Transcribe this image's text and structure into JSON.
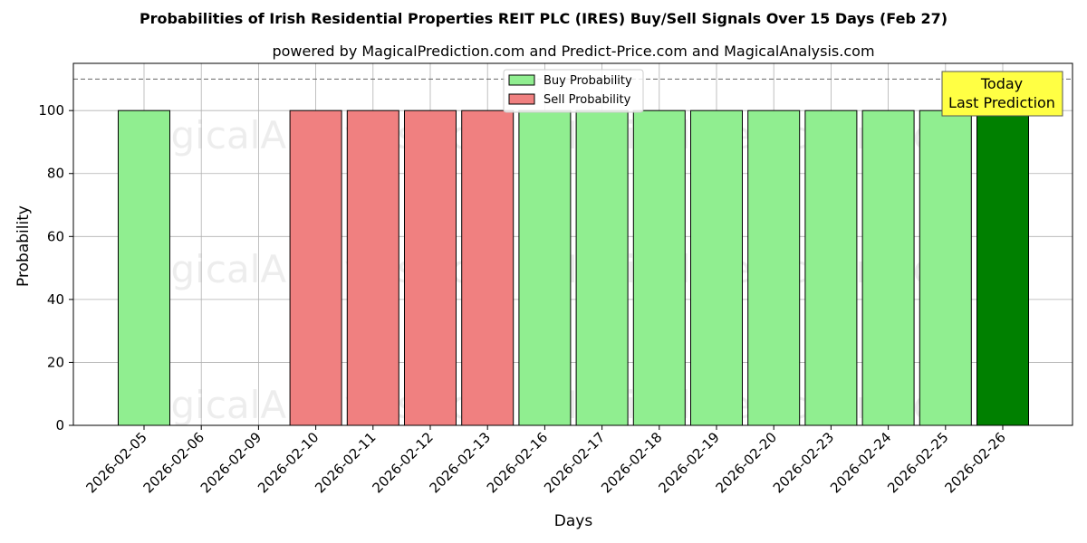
{
  "chart_data": {
    "type": "bar",
    "title": "Probabilities of Irish Residential Properties REIT PLC (IRES) Buy/Sell Signals Over 15 Days (Feb 27)",
    "subtitle": "powered by MagicalPrediction.com and Predict-Price.com and MagicalAnalysis.com",
    "xlabel": "Days",
    "ylabel": "Probability",
    "ylim": [
      0,
      115
    ],
    "yticks": [
      0,
      20,
      40,
      60,
      80,
      100
    ],
    "reference_line": 110,
    "grid": true,
    "legend_position": "top-center",
    "categories": [
      "2026-02-05",
      "2026-02-06",
      "2026-02-09",
      "2026-02-10",
      "2026-02-11",
      "2026-02-12",
      "2026-02-13",
      "2026-02-16",
      "2026-02-17",
      "2026-02-18",
      "2026-02-19",
      "2026-02-20",
      "2026-02-23",
      "2026-02-24",
      "2026-02-25",
      "2026-02-26"
    ],
    "series": [
      {
        "name": "Buy Probability",
        "color": "#90ee90",
        "values": [
          100,
          0,
          0,
          0,
          0,
          0,
          0,
          100,
          100,
          100,
          100,
          100,
          100,
          100,
          100,
          100
        ]
      },
      {
        "name": "Sell Probability",
        "color": "#f08080",
        "values": [
          0,
          0,
          0,
          100,
          100,
          100,
          100,
          0,
          0,
          0,
          0,
          0,
          0,
          0,
          0,
          0
        ]
      }
    ],
    "highlight": {
      "category": "2026-02-26",
      "color": "#008000"
    },
    "annotation": {
      "lines": [
        "Today",
        "Last Prediction"
      ],
      "background": "#ffff44"
    },
    "watermarks": [
      "MagicalAnalysis.com",
      "MagicalPrediction.com"
    ]
  }
}
